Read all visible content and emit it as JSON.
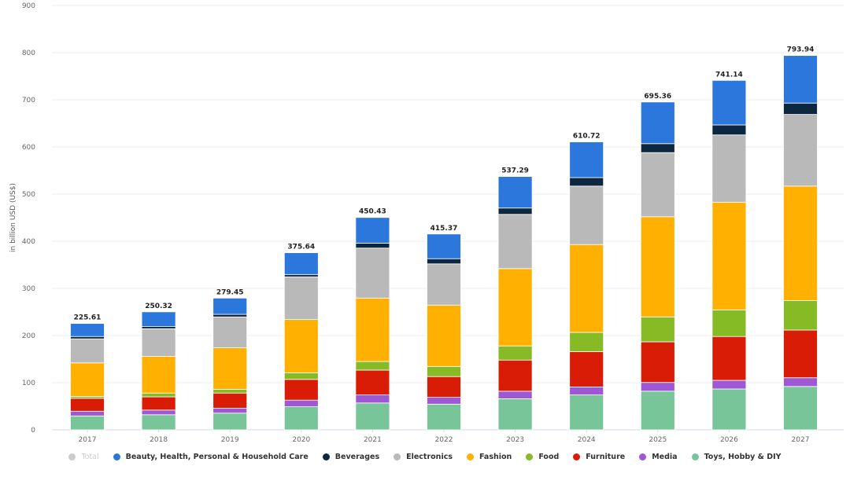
{
  "chart_data": {
    "type": "bar",
    "stacked": true,
    "title": "",
    "xlabel": "",
    "ylabel": "in billion USD (US$)",
    "ylim": [
      0,
      900
    ],
    "yticks": [
      0,
      100,
      200,
      300,
      400,
      500,
      600,
      700,
      800,
      900
    ],
    "grid": true,
    "legend_position": "bottom",
    "categories": [
      "2017",
      "2018",
      "2019",
      "2020",
      "2021",
      "2022",
      "2023",
      "2024",
      "2025",
      "2026",
      "2027"
    ],
    "totals": [
      "225.61",
      "250.32",
      "279.45",
      "375.64",
      "450.43",
      "415.37",
      "537.29",
      "610.72",
      "695.36",
      "741.14",
      "793.94"
    ],
    "legend": [
      {
        "name": "Total",
        "color": "#cccccc",
        "disabled": true
      },
      {
        "name": "Beauty, Health, Personal & Household Care",
        "color": "#2b77dc",
        "disabled": false
      },
      {
        "name": "Beverages",
        "color": "#0e2741",
        "disabled": false
      },
      {
        "name": "Electronics",
        "color": "#b9b9b9",
        "disabled": false
      },
      {
        "name": "Fashion",
        "color": "#ffb000",
        "disabled": false
      },
      {
        "name": "Food",
        "color": "#86bb26",
        "disabled": false
      },
      {
        "name": "Furniture",
        "color": "#d91c06",
        "disabled": false
      },
      {
        "name": "Media",
        "color": "#9f58d4",
        "disabled": false
      },
      {
        "name": "Toys, Hobby & DIY",
        "color": "#77c598",
        "disabled": false
      }
    ],
    "series": [
      {
        "name": "Toys, Hobby & DIY",
        "color": "#77c598",
        "values": [
          29.5,
          32,
          35.5,
          49,
          57,
          54.5,
          66,
          74,
          82,
          86.7,
          92
        ]
      },
      {
        "name": "Media",
        "color": "#9f58d4",
        "values": [
          10,
          10,
          10.5,
          14,
          17,
          14.5,
          16,
          17,
          18.5,
          18.3,
          18.5
        ]
      },
      {
        "name": "Furniture",
        "color": "#d91c06",
        "values": [
          27.5,
          28,
          32,
          44,
          52.7,
          44,
          66,
          75,
          86.2,
          93,
          101.2
        ]
      },
      {
        "name": "Food",
        "color": "#86bb26",
        "values": [
          4,
          8,
          8,
          14,
          18.3,
          21.5,
          30,
          40.7,
          52.8,
          56.5,
          62.3
        ]
      },
      {
        "name": "Fashion",
        "color": "#ffb000",
        "values": [
          71,
          78,
          88,
          113,
          134.5,
          130,
          164,
          186.3,
          212.5,
          228.3,
          243
        ]
      },
      {
        "name": "Electronics",
        "color": "#b9b9b9",
        "values": [
          51,
          58.5,
          65.5,
          90.5,
          106,
          87.5,
          115,
          124,
          136,
          142.7,
          152
        ]
      },
      {
        "name": "Beverages",
        "color": "#0e2741",
        "values": [
          5,
          4.5,
          5.5,
          5,
          10.5,
          11,
          13.5,
          18,
          19,
          21.2,
          24
        ]
      },
      {
        "name": "Beauty, Health, Personal & Household Care",
        "color": "#2b77dc",
        "values": [
          27.6,
          31.3,
          34.45,
          46.14,
          54.43,
          52.37,
          66.79,
          75.72,
          88.36,
          94.44,
          100.94
        ]
      }
    ]
  }
}
